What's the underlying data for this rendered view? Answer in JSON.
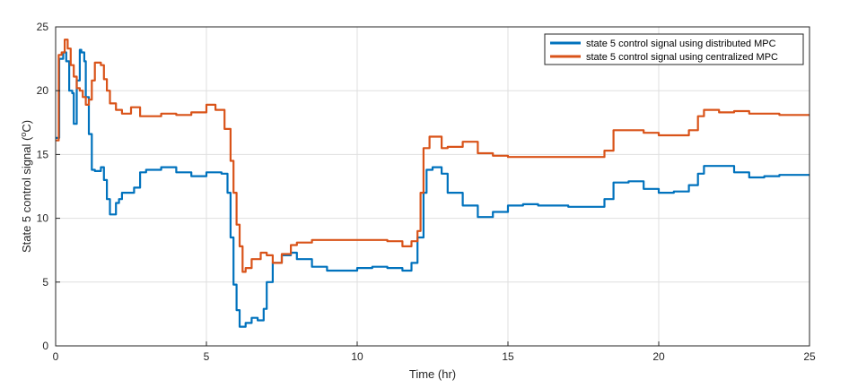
{
  "chart_data": {
    "type": "line",
    "xlabel": "Time (hr)",
    "ylabel_prefix": "State 5 control signal (",
    "ylabel_sup": "o",
    "ylabel_suffix": "C)",
    "xlim": [
      0,
      25
    ],
    "ylim": [
      0,
      25
    ],
    "xticks": [
      "0",
      "5",
      "10",
      "15",
      "20",
      "25"
    ],
    "yticks": [
      "0",
      "5",
      "10",
      "15",
      "20",
      "25"
    ],
    "grid": true,
    "legend_position": "top-right",
    "series": [
      {
        "name": "state 5 control signal using distributed MPC",
        "color": "#0072BD",
        "x": [
          0,
          0.12,
          0.25,
          0.35,
          0.45,
          0.55,
          0.6,
          0.7,
          0.8,
          0.85,
          0.95,
          1.0,
          1.1,
          1.2,
          1.3,
          1.5,
          1.6,
          1.7,
          1.8,
          1.9,
          2.0,
          2.1,
          2.2,
          2.4,
          2.6,
          2.8,
          3.0,
          3.5,
          4.0,
          4.5,
          5.0,
          5.5,
          5.7,
          5.8,
          5.9,
          6.0,
          6.1,
          6.2,
          6.3,
          6.5,
          6.7,
          6.9,
          7.0,
          7.2,
          7.5,
          7.8,
          8.0,
          8.5,
          9.0,
          9.5,
          10.0,
          10.5,
          11.0,
          11.5,
          11.8,
          12.0,
          12.2,
          12.3,
          12.5,
          12.8,
          13.0,
          13.5,
          14.0,
          14.5,
          15.0,
          15.5,
          16.0,
          17.0,
          17.8,
          18.2,
          18.5,
          19.0,
          19.5,
          20.0,
          20.5,
          21.0,
          21.3,
          21.5,
          22.0,
          22.5,
          23.0,
          23.5,
          24.0,
          24.5,
          25.0
        ],
        "y": [
          16.3,
          22.5,
          23.0,
          22.3,
          20.0,
          19.8,
          17.4,
          20.8,
          23.2,
          23.0,
          22.3,
          19.5,
          16.6,
          13.8,
          13.7,
          14.0,
          13.0,
          11.5,
          10.3,
          10.3,
          11.2,
          11.5,
          12.0,
          12.0,
          12.4,
          13.6,
          13.8,
          14.0,
          13.6,
          13.3,
          13.6,
          13.5,
          12.0,
          8.5,
          4.8,
          2.8,
          1.5,
          1.5,
          1.8,
          2.2,
          2.0,
          2.9,
          5.0,
          6.5,
          7.1,
          7.3,
          6.8,
          6.2,
          5.9,
          5.9,
          6.1,
          6.2,
          6.1,
          5.9,
          6.5,
          8.5,
          12.0,
          13.8,
          14.0,
          13.5,
          12.0,
          11.0,
          10.1,
          10.5,
          11.0,
          11.1,
          11.0,
          10.9,
          10.9,
          11.5,
          12.8,
          12.9,
          12.3,
          12.0,
          12.1,
          12.6,
          13.5,
          14.1,
          14.1,
          13.6,
          13.2,
          13.3,
          13.4,
          13.4,
          13.4
        ]
      },
      {
        "name": "state 5 control signal using centralized MPC",
        "color": "#D95319",
        "x": [
          0,
          0.1,
          0.2,
          0.3,
          0.4,
          0.5,
          0.6,
          0.7,
          0.8,
          0.9,
          1.0,
          1.1,
          1.2,
          1.3,
          1.5,
          1.6,
          1.7,
          1.8,
          2.0,
          2.2,
          2.5,
          2.8,
          3.0,
          3.5,
          4.0,
          4.5,
          5.0,
          5.3,
          5.6,
          5.8,
          5.9,
          6.0,
          6.1,
          6.2,
          6.3,
          6.5,
          6.8,
          7.0,
          7.2,
          7.5,
          7.8,
          8.0,
          8.5,
          9.0,
          9.5,
          10.0,
          10.5,
          11.0,
          11.5,
          11.8,
          12.0,
          12.1,
          12.2,
          12.4,
          12.8,
          13.0,
          13.5,
          14.0,
          14.5,
          15.0,
          16.0,
          17.0,
          17.8,
          18.2,
          18.5,
          19.0,
          19.5,
          20.0,
          20.5,
          21.0,
          21.3,
          21.5,
          22.0,
          22.5,
          23.0,
          24.0,
          25.0
        ],
        "y": [
          16.1,
          22.8,
          23.0,
          24.0,
          23.3,
          22.0,
          21.1,
          20.2,
          20.0,
          19.5,
          18.9,
          19.3,
          20.8,
          22.2,
          22.0,
          20.9,
          20.0,
          19.0,
          18.5,
          18.2,
          18.7,
          18.0,
          18.0,
          18.2,
          18.1,
          18.3,
          18.9,
          18.5,
          17.0,
          14.5,
          12.0,
          9.5,
          7.8,
          5.8,
          6.1,
          6.8,
          7.3,
          7.1,
          6.5,
          7.2,
          7.9,
          8.1,
          8.3,
          8.3,
          8.3,
          8.3,
          8.3,
          8.2,
          7.8,
          8.2,
          9.0,
          12.0,
          15.5,
          16.4,
          15.5,
          15.6,
          16.0,
          15.1,
          14.9,
          14.8,
          14.8,
          14.8,
          14.8,
          15.3,
          16.9,
          16.9,
          16.7,
          16.5,
          16.5,
          16.9,
          18.0,
          18.5,
          18.3,
          18.4,
          18.2,
          18.1,
          18.1
        ]
      }
    ]
  }
}
